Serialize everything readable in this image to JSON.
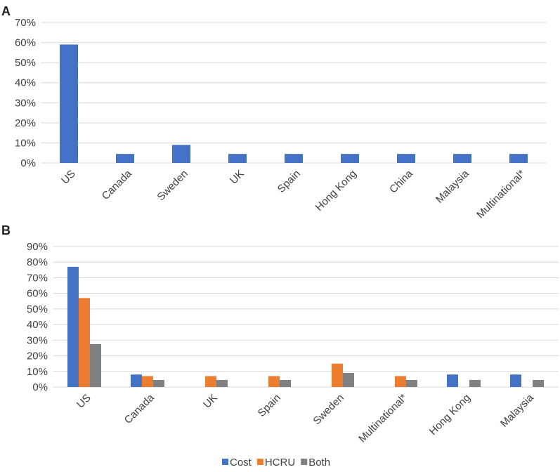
{
  "chart_data": [
    {
      "type": "bar",
      "panel_label": "A",
      "categories": [
        "US",
        "Canada",
        "Sweden",
        "UK",
        "Spain",
        "Hong Kong",
        "China",
        "Malaysia",
        "Multinational*"
      ],
      "series": [
        {
          "values": [
            59,
            4.5,
            9,
            4.5,
            4.5,
            4.5,
            4.5,
            4.5,
            4.5
          ],
          "color": "#4472c4"
        }
      ],
      "yticks": [
        "0%",
        "10%",
        "20%",
        "30%",
        "40%",
        "50%",
        "60%",
        "70%"
      ],
      "ylim": [
        0,
        70
      ],
      "grid": true,
      "legend": "none"
    },
    {
      "type": "bar",
      "panel_label": "B",
      "categories": [
        "US",
        "Canada",
        "UK",
        "Spain",
        "Sweden",
        "Multinational*",
        "Hong Kong",
        "Malaysia"
      ],
      "series": [
        {
          "name": "Cost",
          "values": [
            77,
            8,
            0,
            0,
            0,
            0,
            8,
            8
          ],
          "color": "#4472c4"
        },
        {
          "name": "HCRU",
          "values": [
            57,
            7,
            7,
            7,
            15,
            7,
            0,
            0
          ],
          "color": "#ed7d31"
        },
        {
          "name": "Both",
          "values": [
            27.5,
            4.5,
            4.5,
            4.5,
            9,
            4.5,
            4.5,
            4.5
          ],
          "color": "#808080"
        }
      ],
      "yticks": [
        "0%",
        "10%",
        "20%",
        "30%",
        "40%",
        "50%",
        "60%",
        "70%",
        "80%",
        "90%"
      ],
      "ylim": [
        0,
        90
      ],
      "grid": true,
      "legend": "bottom-center"
    }
  ]
}
